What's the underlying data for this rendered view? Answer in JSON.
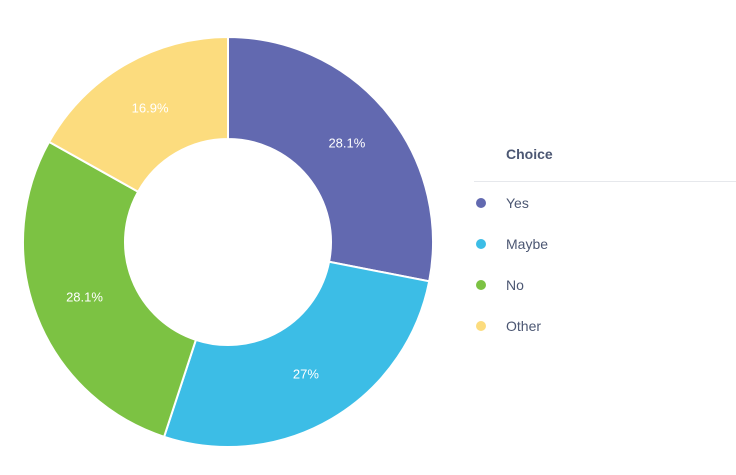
{
  "chart_data": {
    "type": "pie",
    "subtype": "donut",
    "legend_title": "Choice",
    "legend_position": "right",
    "slices": [
      {
        "label": "Yes",
        "value": 28.1,
        "value_label": "28.1%",
        "color": "#6269b0"
      },
      {
        "label": "Maybe",
        "value": 27,
        "value_label": "27%",
        "color": "#3cbde6"
      },
      {
        "label": "No",
        "value": 28.1,
        "value_label": "28.1%",
        "color": "#7cc243"
      },
      {
        "label": "Other",
        "value": 16.9,
        "value_label": "16.9%",
        "color": "#fcdc7e"
      }
    ]
  }
}
